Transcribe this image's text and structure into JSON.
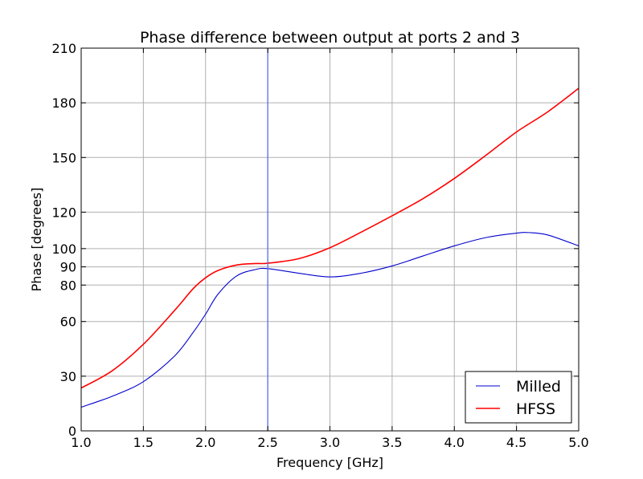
{
  "chart_data": {
    "type": "line",
    "title": "Phase difference between output at ports 2 and 3",
    "xlabel": "Frequency [GHz]",
    "ylabel": "Phase [degrees]",
    "xlim": [
      1.0,
      5.0
    ],
    "ylim": [
      0,
      210
    ],
    "xticks": [
      1.0,
      1.5,
      2.0,
      2.5,
      3.0,
      3.5,
      4.0,
      4.5,
      5.0
    ],
    "xtick_labels": [
      "1.0",
      "1.5",
      "2.0",
      "2.5",
      "3.0",
      "3.5",
      "4.0",
      "4.5",
      "5.0"
    ],
    "yticks": [
      0,
      30,
      60,
      80,
      90,
      100,
      120,
      150,
      180,
      210
    ],
    "ytick_labels": [
      "0",
      "30",
      "60",
      "80",
      "90",
      "100",
      "120",
      "150",
      "180",
      "210"
    ],
    "grid": true,
    "legend_position": "bottom-right",
    "vertical_marker": {
      "x": 2.5,
      "color": "#5a6fe8"
    },
    "series": [
      {
        "name": "Milled",
        "color": "#0000cc",
        "x": [
          1.0,
          1.25,
          1.5,
          1.75,
          1.9,
          2.0,
          2.1,
          2.25,
          2.4,
          2.5,
          2.75,
          3.0,
          3.25,
          3.5,
          3.75,
          4.0,
          4.25,
          4.5,
          4.6,
          4.75,
          5.0
        ],
        "y": [
          13,
          19,
          27,
          41,
          54,
          64,
          75,
          85,
          88.5,
          89,
          86.5,
          84.5,
          86.5,
          90.5,
          96,
          101.5,
          106,
          108.5,
          108.8,
          107.5,
          101.5
        ]
      },
      {
        "name": "HFSS",
        "color": "#ff0000",
        "x": [
          1.0,
          1.25,
          1.5,
          1.75,
          1.9,
          2.0,
          2.1,
          2.25,
          2.4,
          2.5,
          2.75,
          3.0,
          3.25,
          3.5,
          3.75,
          4.0,
          4.25,
          4.5,
          4.75,
          5.0
        ],
        "y": [
          23.5,
          33,
          47.5,
          66,
          78,
          84,
          88,
          91,
          91.8,
          92,
          94.5,
          100.5,
          109,
          118,
          127.5,
          138.5,
          151,
          164,
          175,
          188
        ]
      }
    ]
  }
}
